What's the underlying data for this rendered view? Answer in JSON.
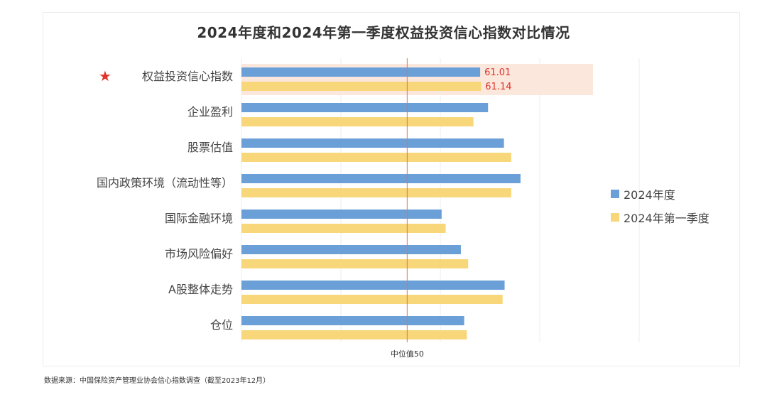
{
  "title": "2024年度和2024年第一季度权益投资信心指数对比情况",
  "source": "数据来源：中国保险资产管理业协会信心指数调查（截至2023年12月）",
  "colors": {
    "annual": "#6a9fd8",
    "q1": "#f7d77a",
    "highlight": "#fbe7dc",
    "midline": "#e8734a",
    "label_red": "#e0332a",
    "star": "#e0332a"
  },
  "chart_data": {
    "type": "bar",
    "orientation": "horizontal",
    "title": "2024年度和2024年第一季度权益投资信心指数对比情况",
    "categories": [
      "权益投资信心指数",
      "企业盈利",
      "股票估值",
      "国内政策环境（流动性等）",
      "国际金融环境",
      "市场风险偏好",
      "A股整体走势",
      "仓位"
    ],
    "series": [
      {
        "name": "2024年度",
        "values": [
          61.01,
          62.2,
          64.6,
          67.1,
          55.2,
          58.1,
          64.7,
          58.6
        ]
      },
      {
        "name": "2024年第一季度",
        "values": [
          61.14,
          60.0,
          65.7,
          65.7,
          55.8,
          59.2,
          64.4,
          59.0
        ]
      }
    ],
    "xlim": [
      25,
      85
    ],
    "reference_line": {
      "value": 50,
      "label": "中位值50"
    },
    "highlighted_category": "权益投资信心指数",
    "data_labels": [
      "61.01",
      "61.14"
    ],
    "legend": {
      "position": "right",
      "entries": [
        "2024年度",
        "2024年第一季度"
      ]
    },
    "grid": true
  }
}
